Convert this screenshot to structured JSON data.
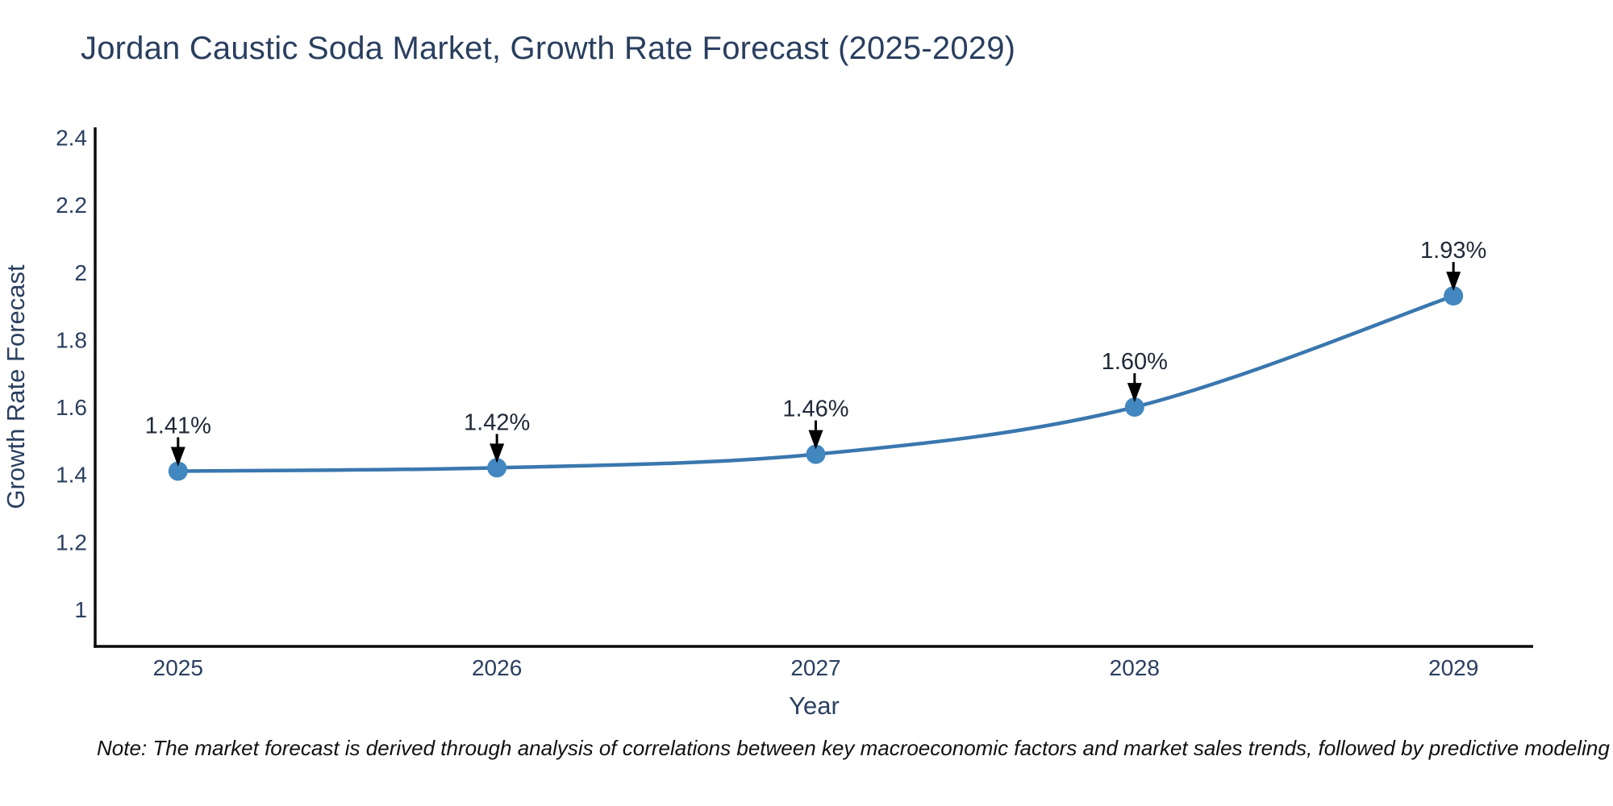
{
  "chart": {
    "title": "Jordan Caustic Soda Market, Growth Rate Forecast (2025-2029)",
    "footnote": "Note: The market forecast is derived through analysis of correlations between key macroeconomic factors and market sales trends, followed by predictive modeling to project future sales",
    "colors": {
      "title_text": "#2a3f5f",
      "tick_text": "#2a3f5f",
      "axis_line": "#0b0b0b",
      "line": "#3a77ae",
      "marker": "#4287bf",
      "annotation_text": "#1f2937",
      "arrow": "#000000",
      "background": "#ffffff"
    }
  },
  "chart_data": {
    "type": "line",
    "title": "Jordan Caustic Soda Market, Growth Rate Forecast (2025-2029)",
    "xlabel": "Year",
    "ylabel": "Growth Rate Forecast",
    "x": [
      2025,
      2026,
      2027,
      2028,
      2029
    ],
    "series": [
      {
        "name": "Growth Rate Forecast",
        "values": [
          1.41,
          1.42,
          1.46,
          1.6,
          1.93
        ]
      }
    ],
    "point_labels": [
      "1.41%",
      "1.42%",
      "1.46%",
      "1.60%",
      "1.93%"
    ],
    "xticks": [
      "2025",
      "2026",
      "2027",
      "2028",
      "2029"
    ],
    "yticks": [
      2.4,
      2.2,
      2.0,
      1.8,
      1.6,
      1.4,
      1.2,
      1.0
    ],
    "ytick_labels": [
      "2.4",
      "2.2",
      "2",
      "1.8",
      "1.6",
      "1.4",
      "1.2",
      "1"
    ],
    "ylim": [
      0.89,
      2.43
    ],
    "xlim": [
      2024.74,
      2029.25
    ],
    "grid": false,
    "legend": false,
    "line_shape": "spline",
    "markers": true,
    "annotations": "percentage value label with downward black arrow above each data point"
  }
}
